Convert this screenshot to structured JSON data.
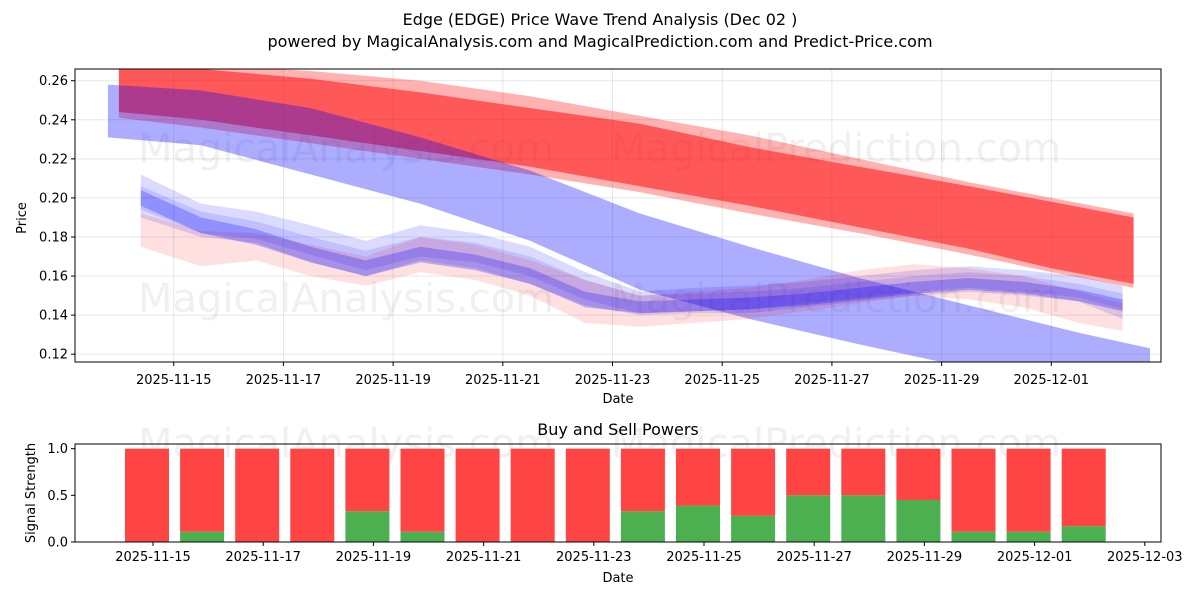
{
  "main_chart": {
    "title": "Edge (EDGE) Price Wave Trend Analysis (Dec 02 )",
    "subtitle": "powered by MagicalAnalysis.com and MagicalPrediction.com and Predict-Price.com",
    "xlabel": "Date",
    "ylabel": "Price",
    "x_tick_labels": [
      "2025-11-15",
      "2025-11-17",
      "2025-11-19",
      "2025-11-21",
      "2025-11-23",
      "2025-11-25",
      "2025-11-27",
      "2025-11-29",
      "2025-12-01"
    ],
    "y_tick_labels": [
      "0.12",
      "0.14",
      "0.16",
      "0.18",
      "0.20",
      "0.22",
      "0.24",
      "0.26"
    ],
    "watermark_left": "MagicalAnalysis.com",
    "watermark_right": "MagicalPrediction.com"
  },
  "power_chart": {
    "title": "Buy and Sell Powers",
    "xlabel": "Date",
    "ylabel": "Signal Strength",
    "x_tick_labels": [
      "2025-11-15",
      "2025-11-17",
      "2025-11-19",
      "2025-11-21",
      "2025-11-23",
      "2025-11-25",
      "2025-11-27",
      "2025-11-29",
      "2025-12-01",
      "2025-12-03"
    ],
    "y_tick_labels": [
      "0.0",
      "0.5",
      "1.0"
    ],
    "watermark_left": "MagicalAnalysis.com",
    "watermark_right": "MagicalPrediction.com"
  },
  "chart_data": [
    {
      "type": "area",
      "title": "Edge (EDGE) Price Wave Trend Analysis (Dec 02 )",
      "xlabel": "Date",
      "ylabel": "Price",
      "x_start": "2025-11-13",
      "xlim_day_offsets": [
        -0.3,
        19.5
      ],
      "ylim": [
        0.116,
        0.266
      ],
      "colors": {
        "red": "#ff0000",
        "blue": "#0000ff",
        "light_red": "#ffb3b3",
        "light_blue": "#b3b3ff"
      },
      "series": [
        {
          "name": "red-wide-band",
          "color": "#ff0000",
          "opacity": 0.5,
          "x": [
            0.5,
            2,
            4,
            6,
            8,
            10,
            12,
            14,
            16,
            17.5,
            19
          ],
          "upper": [
            0.268,
            0.266,
            0.261,
            0.254,
            0.246,
            0.238,
            0.226,
            0.216,
            0.206,
            0.198,
            0.19
          ],
          "lower": [
            0.244,
            0.24,
            0.232,
            0.224,
            0.216,
            0.206,
            0.196,
            0.185,
            0.174,
            0.164,
            0.156
          ]
        },
        {
          "name": "red-light-band",
          "color": "#ff0000",
          "opacity": 0.3,
          "x": [
            0.5,
            2,
            4,
            6,
            8,
            10,
            12,
            14,
            16,
            17.5,
            19
          ],
          "upper": [
            0.27,
            0.268,
            0.265,
            0.26,
            0.252,
            0.242,
            0.232,
            0.22,
            0.208,
            0.2,
            0.192
          ],
          "lower": [
            0.241,
            0.236,
            0.228,
            0.22,
            0.212,
            0.203,
            0.192,
            0.182,
            0.171,
            0.162,
            0.154
          ]
        },
        {
          "name": "blue-wide-band",
          "color": "#0000ff",
          "opacity": 0.32,
          "x": [
            0.3,
            2,
            4,
            6,
            8,
            10,
            12,
            14,
            16,
            18,
            19.3
          ],
          "upper": [
            0.258,
            0.255,
            0.246,
            0.231,
            0.214,
            0.192,
            0.175,
            0.159,
            0.145,
            0.131,
            0.123
          ],
          "lower": [
            0.231,
            0.227,
            0.212,
            0.197,
            0.178,
            0.153,
            0.138,
            0.125,
            0.113,
            0.103,
            0.097
          ]
        },
        {
          "name": "blue-wave-band-1",
          "color": "#0000ff",
          "opacity": 0.14,
          "x": [
            0.9,
            2,
            3,
            4,
            5,
            6,
            7,
            8,
            9,
            10,
            11,
            12,
            13,
            14,
            15,
            16,
            17,
            18,
            18.8
          ],
          "upper": [
            0.212,
            0.197,
            0.193,
            0.186,
            0.178,
            0.186,
            0.182,
            0.175,
            0.162,
            0.152,
            0.154,
            0.155,
            0.157,
            0.16,
            0.163,
            0.165,
            0.163,
            0.16,
            0.155
          ],
          "lower": [
            0.19,
            0.18,
            0.177,
            0.167,
            0.16,
            0.168,
            0.164,
            0.156,
            0.145,
            0.14,
            0.141,
            0.141,
            0.144,
            0.147,
            0.15,
            0.152,
            0.15,
            0.147,
            0.138
          ]
        },
        {
          "name": "blue-wave-band-2",
          "color": "#0000ff",
          "opacity": 0.12,
          "x": [
            0.9,
            2,
            3,
            4,
            5,
            6,
            7,
            8,
            9,
            10,
            11,
            12,
            13,
            14,
            15,
            16,
            17,
            18,
            18.8
          ],
          "upper": [
            0.206,
            0.193,
            0.188,
            0.18,
            0.173,
            0.18,
            0.177,
            0.17,
            0.158,
            0.15,
            0.151,
            0.152,
            0.154,
            0.157,
            0.16,
            0.162,
            0.16,
            0.156,
            0.151
          ],
          "lower": [
            0.194,
            0.182,
            0.179,
            0.171,
            0.163,
            0.17,
            0.167,
            0.16,
            0.148,
            0.141,
            0.142,
            0.143,
            0.146,
            0.149,
            0.152,
            0.154,
            0.152,
            0.149,
            0.143
          ]
        },
        {
          "name": "red-wave-band",
          "color": "#ff0000",
          "opacity": 0.12,
          "x": [
            0.9,
            2,
            3,
            4,
            5,
            6,
            7,
            8,
            9,
            10,
            11,
            12,
            13,
            14,
            15,
            16,
            17,
            18,
            18.8
          ],
          "upper": [
            0.192,
            0.183,
            0.182,
            0.176,
            0.17,
            0.18,
            0.176,
            0.168,
            0.158,
            0.15,
            0.152,
            0.154,
            0.158,
            0.163,
            0.166,
            0.164,
            0.16,
            0.152,
            0.146
          ],
          "lower": [
            0.175,
            0.165,
            0.168,
            0.16,
            0.155,
            0.162,
            0.158,
            0.15,
            0.136,
            0.134,
            0.136,
            0.138,
            0.142,
            0.146,
            0.15,
            0.148,
            0.144,
            0.136,
            0.132
          ]
        },
        {
          "name": "blue-core-band",
          "color": "#0000ff",
          "opacity": 0.25,
          "x": [
            0.9,
            2,
            3,
            4,
            5,
            6,
            7,
            8,
            9,
            10,
            11,
            12,
            13,
            14,
            15,
            16,
            17,
            18,
            18.8
          ],
          "upper": [
            0.204,
            0.19,
            0.184,
            0.175,
            0.168,
            0.175,
            0.171,
            0.164,
            0.152,
            0.147,
            0.148,
            0.149,
            0.151,
            0.154,
            0.157,
            0.159,
            0.157,
            0.153,
            0.148
          ],
          "lower": [
            0.196,
            0.182,
            0.176,
            0.167,
            0.16,
            0.167,
            0.163,
            0.156,
            0.144,
            0.141,
            0.142,
            0.143,
            0.145,
            0.148,
            0.151,
            0.153,
            0.151,
            0.147,
            0.142
          ]
        }
      ]
    },
    {
      "type": "bar",
      "title": "Buy and Sell Powers",
      "xlabel": "Date",
      "ylabel": "Signal Strength",
      "stacked": true,
      "ylim": [
        0,
        1.05
      ],
      "colors": {
        "buy": "#4caf50",
        "sell": "#ff4444"
      },
      "categories": [
        "2025-11-15",
        "2025-11-16",
        "2025-11-17",
        "2025-11-18",
        "2025-11-19",
        "2025-11-20",
        "2025-11-21",
        "2025-11-22",
        "2025-11-23",
        "2025-11-24",
        "2025-11-25",
        "2025-11-26",
        "2025-11-27",
        "2025-11-28",
        "2025-11-29",
        "2025-11-30",
        "2025-12-01",
        "2025-12-02"
      ],
      "series": [
        {
          "name": "Buy",
          "values": [
            0.0,
            0.11,
            0.0,
            0.0,
            0.33,
            0.11,
            0.0,
            0.0,
            0.0,
            0.33,
            0.39,
            0.28,
            0.5,
            0.5,
            0.45,
            0.11,
            0.11,
            0.17
          ]
        },
        {
          "name": "Sell",
          "values": [
            1.0,
            0.89,
            1.0,
            1.0,
            0.67,
            0.89,
            1.0,
            1.0,
            1.0,
            0.67,
            0.61,
            0.72,
            0.5,
            0.5,
            0.55,
            0.89,
            0.89,
            0.83
          ]
        }
      ]
    }
  ]
}
